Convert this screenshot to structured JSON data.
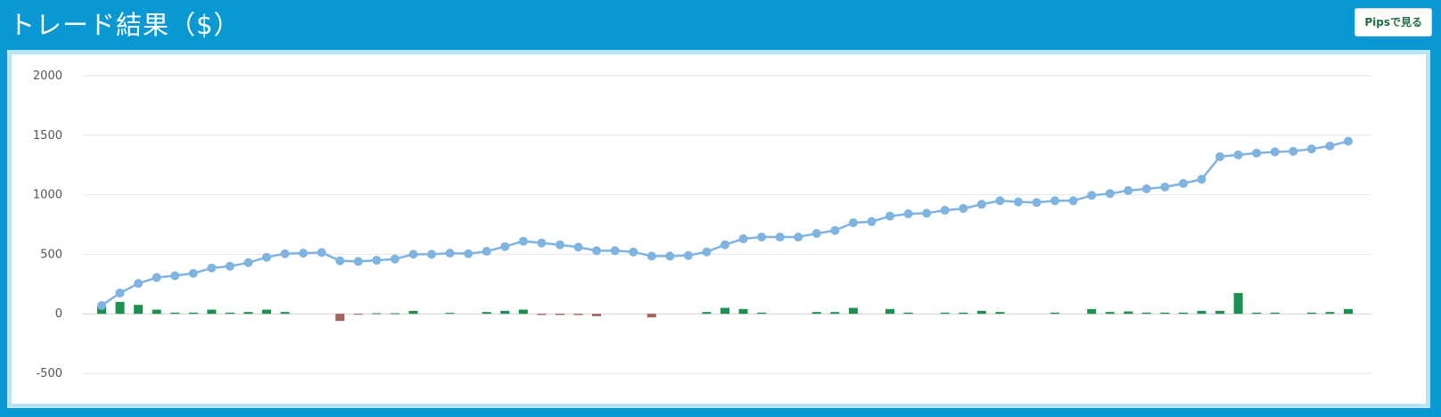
{
  "header": {
    "title": "トレード結果（$）",
    "pips_button_label": "Pipsで見る"
  },
  "colors": {
    "header_bg": "#0a98d3",
    "line": "#7fb3e0",
    "bar_positive": "#1a9150",
    "bar_negative": "#a0645a"
  },
  "chart_data": {
    "type": "bar",
    "title": "",
    "xlabel": "",
    "ylabel": "",
    "ylim": [
      -500,
      2000
    ],
    "yticks": [
      2000,
      1500,
      1000,
      500,
      0,
      -500
    ],
    "grid": true,
    "legend": "none",
    "series": [
      {
        "type": "line",
        "values": [
          70,
          175,
          255,
          305,
          320,
          340,
          385,
          400,
          430,
          475,
          505,
          510,
          515,
          445,
          440,
          450,
          460,
          500,
          500,
          510,
          505,
          525,
          565,
          610,
          595,
          580,
          560,
          530,
          530,
          520,
          485,
          485,
          490,
          520,
          580,
          630,
          645,
          645,
          645,
          675,
          700,
          765,
          775,
          820,
          840,
          845,
          870,
          885,
          920,
          950,
          940,
          935,
          950,
          950,
          995,
          1010,
          1035,
          1050,
          1065,
          1095,
          1130,
          1320,
          1335,
          1350,
          1360,
          1365,
          1385,
          1410,
          1450
        ]
      },
      {
        "type": "bar",
        "values": [
          60,
          100,
          75,
          35,
          10,
          10,
          35,
          10,
          15,
          35,
          15,
          0,
          0,
          -60,
          -5,
          5,
          5,
          25,
          0,
          8,
          0,
          15,
          25,
          35,
          -10,
          -10,
          -10,
          -20,
          0,
          0,
          -30,
          0,
          0,
          15,
          50,
          40,
          10,
          0,
          0,
          15,
          15,
          50,
          0,
          40,
          10,
          0,
          10,
          10,
          25,
          15,
          0,
          0,
          10,
          0,
          40,
          15,
          20,
          10,
          10,
          10,
          25,
          25,
          175,
          10,
          10,
          0,
          10,
          15,
          40
        ]
      }
    ]
  }
}
